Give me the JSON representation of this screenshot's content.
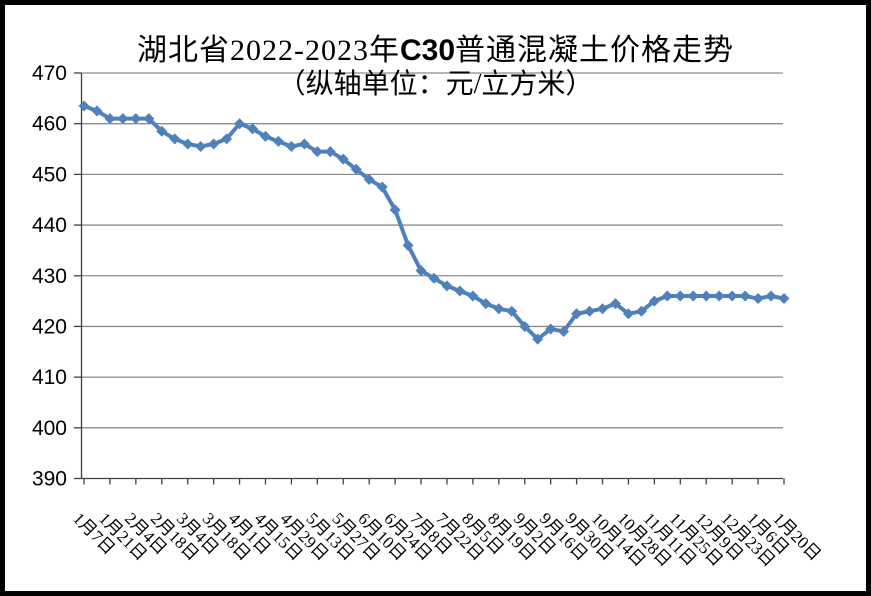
{
  "title": {
    "prefix": "湖北省2022-2023年",
    "c30": "C30",
    "suffix": "普通混凝土价格走势",
    "subtitle": "（纵轴单位：元/立方米）"
  },
  "colors": {
    "series": "#4F81BD",
    "grid": "#8C8C8C",
    "axis": "#404040",
    "text": "#000000",
    "frame": "#000000",
    "background": "#FFFFFF"
  },
  "chart_data": {
    "type": "line",
    "title": "湖北省2022-2023年C30普通混凝土价格走势",
    "subtitle": "（纵轴单位：元/立方米）",
    "y_unit": "元/立方米",
    "ylim": [
      390,
      470
    ],
    "y_ticks": [
      390,
      400,
      410,
      420,
      430,
      440,
      450,
      460,
      470
    ],
    "grid": "horizontal",
    "legend": "none",
    "marker": "diamond",
    "x_tick_labels": [
      "1月7日",
      "1月21日",
      "2月4日",
      "2月18日",
      "3月4日",
      "3月18日",
      "4月1日",
      "4月15日",
      "4月29日",
      "5月13日",
      "5月27日",
      "6月10日",
      "6月24日",
      "7月8日",
      "7月22日",
      "8月5日",
      "8月19日",
      "9月2日",
      "9月16日",
      "9月30日",
      "10月14日",
      "10月28日",
      "11月11日",
      "11月25日",
      "12月9日",
      "12月23日",
      "1月6日",
      "1月20日"
    ],
    "label_every": 2,
    "values": [
      463.5,
      462.5,
      461,
      461,
      461,
      461,
      458.5,
      457,
      456,
      455.5,
      456,
      457,
      460,
      459,
      457.5,
      456.5,
      455.5,
      456,
      454.5,
      454.5,
      453,
      451,
      449,
      447.5,
      443,
      436,
      431,
      429.5,
      428,
      427,
      426,
      424.5,
      423.5,
      423,
      420,
      417.5,
      419.5,
      419,
      422.5,
      423,
      423.5,
      424.5,
      422.5,
      423,
      425,
      426,
      426,
      426,
      426,
      426,
      426,
      426,
      425.5,
      426,
      425.5
    ]
  }
}
